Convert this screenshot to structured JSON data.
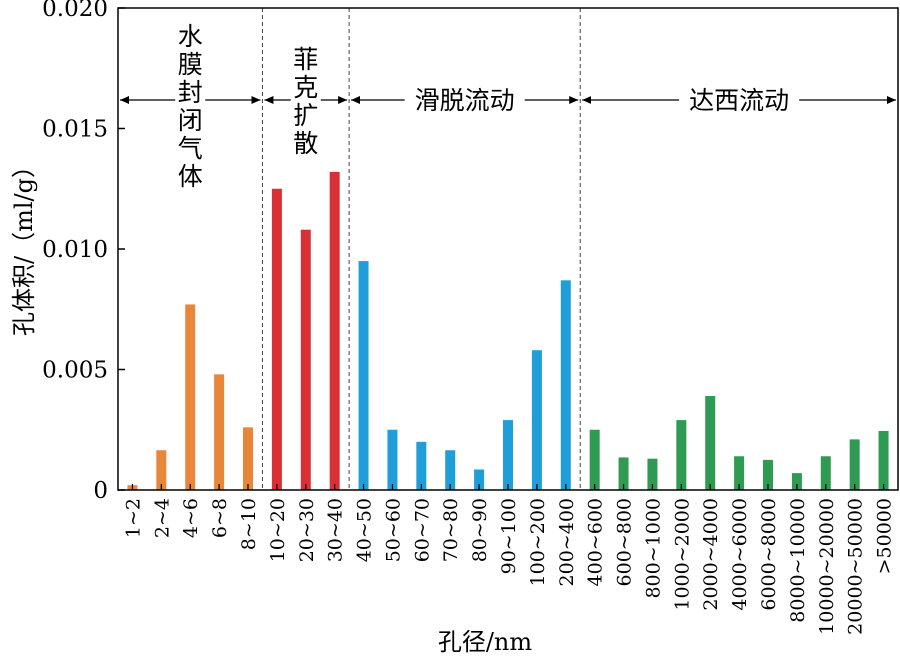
{
  "chart_data": {
    "type": "bar",
    "xlabel": "孔径/nm",
    "ylabel": "孔体积/（ml/g）",
    "ylim": [
      0,
      0.02
    ],
    "yticks": [
      "0",
      "0.005",
      "0.010",
      "0.015",
      "0.020"
    ],
    "ytick_values": [
      0,
      0.005,
      0.01,
      0.015,
      0.02
    ],
    "categories": [
      "1~2",
      "2~4",
      "4~6",
      "6~8",
      "8~10",
      "10~20",
      "20~30",
      "30~40",
      "40~50",
      "50~60",
      "60~70",
      "70~80",
      "80~90",
      "90~100",
      "100~200",
      "200~400",
      "400~600",
      "600~800",
      "800~1000",
      "1000~2000",
      "2000~4000",
      "4000~6000",
      "6000~8000",
      "8000~10000",
      "10000~20000",
      "20000~50000",
      ">50000"
    ],
    "values": [
      0.0002,
      0.00165,
      0.0077,
      0.0048,
      0.0026,
      0.0125,
      0.0108,
      0.0132,
      0.0095,
      0.0025,
      0.002,
      0.00165,
      0.00085,
      0.0029,
      0.0058,
      0.0087,
      0.0025,
      0.00135,
      0.0013,
      0.0029,
      0.0039,
      0.0014,
      0.00125,
      0.0007,
      0.0014,
      0.0021,
      0.00245
    ],
    "regions": [
      {
        "label": "水膜封闭气体",
        "start": 0,
        "end": 4,
        "color": "#e8873a",
        "vertical": true
      },
      {
        "label": "菲克扩散",
        "start": 5,
        "end": 7,
        "color": "#d93035",
        "vertical": true
      },
      {
        "label": "滑脱流动",
        "start": 8,
        "end": 15,
        "color": "#1f9ed9",
        "vertical": false
      },
      {
        "label": "达西流动",
        "start": 16,
        "end": 26,
        "color": "#2e9a52",
        "vertical": false
      }
    ],
    "grid": false,
    "legend": "none"
  }
}
